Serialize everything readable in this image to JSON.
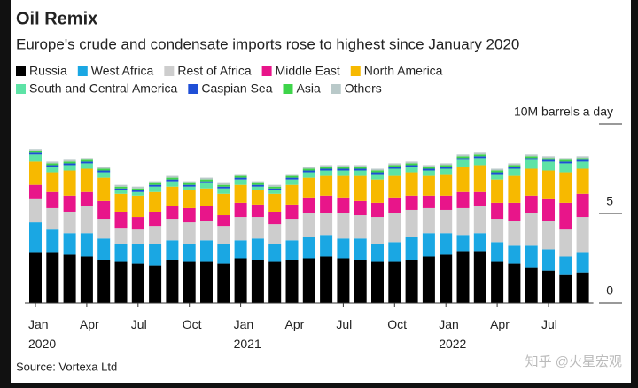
{
  "chart_data": {
    "type": "stacked_bar",
    "title": "Oil Remix",
    "subtitle": "Europe's crude and condensate imports rose to highest since January 2020",
    "source": "Source: Vortexa Ltd",
    "watermark": "知乎 @火星宏观",
    "categories": [
      "Jan\n2020",
      null,
      null,
      "Apr",
      null,
      null,
      "Jul",
      null,
      null,
      "Oct",
      null,
      null,
      "Jan\n2021",
      null,
      null,
      "Apr",
      null,
      null,
      "Jul",
      null,
      null,
      "Oct",
      null,
      null,
      "Jan\n2022",
      null,
      null,
      "Apr",
      null,
      null,
      "Jul",
      null,
      null
    ],
    "ylim": [
      0,
      10
    ],
    "yticks": [
      0,
      5,
      {
        "value": 10,
        "label": "10M barrels a day"
      }
    ],
    "series": [
      {
        "name": "Russia",
        "color": "#000000",
        "values": [
          2.8,
          2.8,
          2.7,
          2.6,
          2.4,
          2.3,
          2.2,
          2.1,
          2.4,
          2.3,
          2.3,
          2.2,
          2.5,
          2.4,
          2.3,
          2.4,
          2.5,
          2.6,
          2.5,
          2.4,
          2.3,
          2.3,
          2.4,
          2.6,
          2.7,
          2.9,
          2.9,
          2.3,
          2.2,
          2.0,
          1.8,
          1.6,
          1.7
        ]
      },
      {
        "name": "West Africa",
        "color": "#1aa7e3",
        "values": [
          1.7,
          1.3,
          1.2,
          1.3,
          1.2,
          1.0,
          1.1,
          1.2,
          1.1,
          1.0,
          1.2,
          1.1,
          1.0,
          1.2,
          1.0,
          1.1,
          1.2,
          1.2,
          1.1,
          1.2,
          1.0,
          1.1,
          1.3,
          1.3,
          1.2,
          0.9,
          1.0,
          1.1,
          1.0,
          1.2,
          1.2,
          1.0,
          1.1
        ]
      },
      {
        "name": "Rest of Africa",
        "color": "#cdcdcd",
        "values": [
          1.3,
          1.2,
          1.2,
          1.5,
          1.1,
          0.9,
          0.8,
          1.0,
          1.2,
          1.2,
          1.1,
          1.0,
          1.3,
          1.2,
          1.1,
          1.2,
          1.3,
          1.2,
          1.4,
          1.3,
          1.5,
          1.6,
          1.5,
          1.4,
          1.3,
          1.5,
          1.5,
          1.3,
          1.4,
          1.8,
          1.6,
          1.5,
          2.0
        ]
      },
      {
        "name": "Middle East",
        "color": "#e8158a",
        "values": [
          0.8,
          0.9,
          0.9,
          0.8,
          1.0,
          0.9,
          0.7,
          0.8,
          0.7,
          0.8,
          0.8,
          0.6,
          0.8,
          0.7,
          0.7,
          0.8,
          0.9,
          1.0,
          0.9,
          0.8,
          0.8,
          0.9,
          0.8,
          0.7,
          0.8,
          0.9,
          0.8,
          0.9,
          1.0,
          1.0,
          1.2,
          1.5,
          1.3
        ]
      },
      {
        "name": "North America",
        "color": "#f7b900",
        "values": [
          1.3,
          1.1,
          1.4,
          1.3,
          1.3,
          1.0,
          1.2,
          1.1,
          1.1,
          1.0,
          1.0,
          1.2,
          1.0,
          0.8,
          1.0,
          1.1,
          1.1,
          1.1,
          1.2,
          1.4,
          1.3,
          1.2,
          1.3,
          1.1,
          1.2,
          1.4,
          1.5,
          1.3,
          1.5,
          1.5,
          1.6,
          1.7,
          1.4
        ]
      },
      {
        "name": "South and Central America",
        "color": "#5de3a6",
        "values": [
          0.4,
          0.3,
          0.3,
          0.3,
          0.3,
          0.2,
          0.2,
          0.3,
          0.3,
          0.2,
          0.3,
          0.3,
          0.3,
          0.2,
          0.2,
          0.3,
          0.3,
          0.3,
          0.3,
          0.3,
          0.3,
          0.4,
          0.3,
          0.3,
          0.3,
          0.4,
          0.4,
          0.3,
          0.4,
          0.5,
          0.5,
          0.5,
          0.4
        ]
      },
      {
        "name": "Caspian Sea",
        "color": "#1f4fd6",
        "values": [
          0.1,
          0.1,
          0.1,
          0.1,
          0.1,
          0.1,
          0.1,
          0.1,
          0.1,
          0.1,
          0.1,
          0.1,
          0.1,
          0.1,
          0.1,
          0.1,
          0.1,
          0.1,
          0.1,
          0.1,
          0.1,
          0.1,
          0.1,
          0.1,
          0.1,
          0.1,
          0.1,
          0.1,
          0.1,
          0.1,
          0.1,
          0.1,
          0.1
        ]
      },
      {
        "name": "Asia",
        "color": "#3ed44a",
        "values": [
          0.1,
          0.1,
          0.1,
          0.1,
          0.1,
          0.1,
          0.1,
          0.1,
          0.1,
          0.1,
          0.1,
          0.1,
          0.1,
          0.1,
          0.1,
          0.1,
          0.1,
          0.1,
          0.1,
          0.1,
          0.1,
          0.1,
          0.1,
          0.1,
          0.1,
          0.1,
          0.1,
          0.1,
          0.1,
          0.1,
          0.1,
          0.1,
          0.1
        ]
      },
      {
        "name": "Others",
        "color": "#b9c9c9",
        "values": [
          0.1,
          0.1,
          0.1,
          0.1,
          0.1,
          0.1,
          0.1,
          0.1,
          0.1,
          0.1,
          0.1,
          0.1,
          0.1,
          0.1,
          0.1,
          0.1,
          0.1,
          0.1,
          0.1,
          0.1,
          0.1,
          0.1,
          0.1,
          0.1,
          0.1,
          0.1,
          0.1,
          0.1,
          0.1,
          0.1,
          0.1,
          0.1,
          0.1
        ]
      }
    ]
  }
}
